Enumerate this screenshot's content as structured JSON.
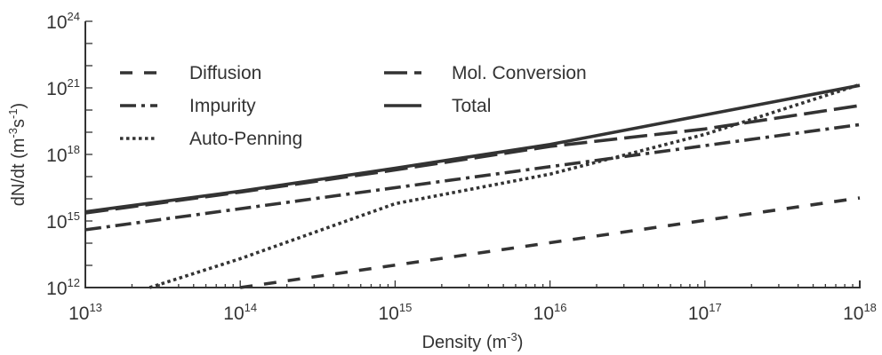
{
  "chart_data": {
    "type": "line",
    "xlabel": "Density (m^-3)",
    "ylabel": "dN/dt (m^-3 s^-1)",
    "xscale": "log",
    "yscale": "log",
    "xlim": [
      10000000000000.0,
      1e+18
    ],
    "ylim": [
      1000000000000.0,
      1e+24
    ],
    "x_ticks": [
      {
        "base": "10",
        "exp": "13",
        "value": 10000000000000.0
      },
      {
        "base": "10",
        "exp": "14",
        "value": 100000000000000.0
      },
      {
        "base": "10",
        "exp": "15",
        "value": 1000000000000000.0
      },
      {
        "base": "10",
        "exp": "16",
        "value": 1e+16
      },
      {
        "base": "10",
        "exp": "17",
        "value": 1e+17
      },
      {
        "base": "10",
        "exp": "18",
        "value": 1e+18
      }
    ],
    "y_ticks": [
      {
        "base": "10",
        "exp": "12",
        "value": 1000000000000.0
      },
      {
        "base": "10",
        "exp": "15",
        "value": 1000000000000000.0
      },
      {
        "base": "10",
        "exp": "18",
        "value": 1e+18
      },
      {
        "base": "10",
        "exp": "21",
        "value": 1e+21
      },
      {
        "base": "10",
        "exp": "24",
        "value": 1e+24
      }
    ],
    "grid": false,
    "legend": "upper-left, two columns",
    "series": [
      {
        "name": "Diffusion",
        "style": "dashed",
        "x": [
          100000000000000.0,
          1e+18
        ],
        "y": [
          1000000000000.0,
          1.1e+16
        ]
      },
      {
        "name": "Impurity",
        "style": "dash-dot",
        "x": [
          10000000000000.0,
          1e+18
        ],
        "y": [
          400000000000000.0,
          2.2e+19
        ]
      },
      {
        "name": "Auto-Penning",
        "style": "dotted",
        "x": [
          26000000000000.0,
          100000000000000.0,
          1000000000000000.0,
          1e+16,
          1e+17,
          1e+18
        ],
        "y": [
          1000000000000.0,
          20000000000000.0,
          6000000000000000.0,
          1.3e+17,
          8e+18,
          1.4e+21
        ]
      },
      {
        "name": "Mol. Conversion",
        "style": "long-dash",
        "x": [
          10000000000000.0,
          100000000000000.0,
          1000000000000000.0,
          1e+16,
          1e+17,
          1e+18
        ],
        "y": [
          2300000000000000.0,
          2e+16,
          2e+17,
          2.3e+18,
          1.4e+19,
          1.6e+20
        ]
      },
      {
        "name": "Total",
        "style": "solid",
        "x": [
          10000000000000.0,
          100000000000000.0,
          1000000000000000.0,
          1e+16,
          1e+17,
          1e+18
        ],
        "y": [
          2600000000000000.0,
          2.2e+16,
          2.4e+17,
          2.8e+18,
          6e+19,
          1.3e+21
        ]
      }
    ]
  }
}
